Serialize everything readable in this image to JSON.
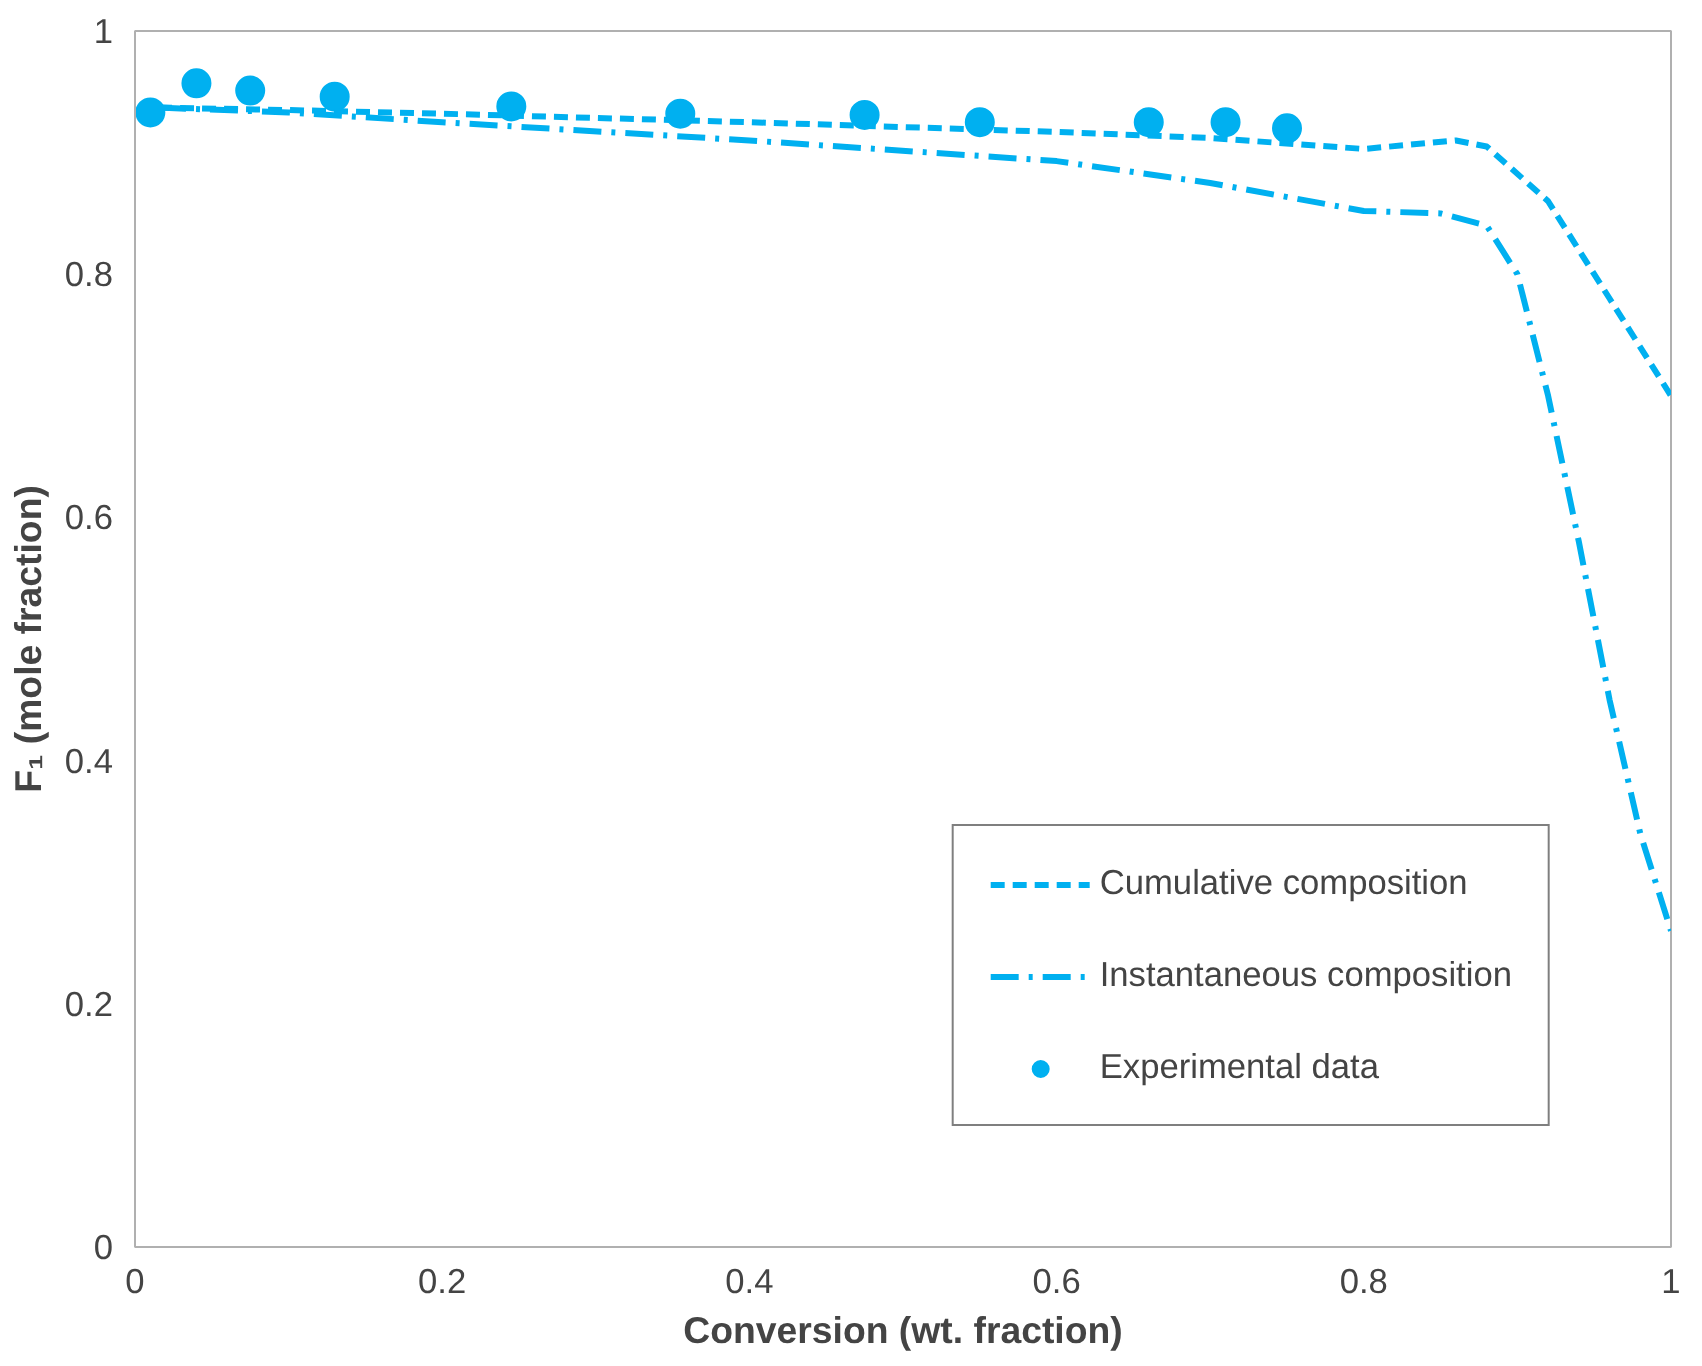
{
  "chart_data": {
    "type": "line",
    "xlabel": "Conversion (wt. fraction)",
    "ylabel": "F₁ (mole fraction)",
    "xlim": [
      0,
      1
    ],
    "ylim": [
      0,
      1
    ],
    "xticks": [
      0,
      0.2,
      0.4,
      0.6,
      0.8,
      1
    ],
    "yticks": [
      0,
      0.2,
      0.4,
      0.6,
      0.8,
      1
    ],
    "grid": false,
    "legend": "bottom right",
    "series": [
      {
        "name": "Cumulative composition",
        "line_style": "dashed",
        "color": "#00b0f0",
        "x": [
          0.015,
          0.1,
          0.2,
          0.4,
          0.6,
          0.7,
          0.8,
          0.86,
          0.88,
          0.92,
          0.96,
          1.0
        ],
        "values": [
          0.937,
          0.935,
          0.932,
          0.925,
          0.917,
          0.912,
          0.903,
          0.91,
          0.905,
          0.86,
          0.78,
          0.7
        ]
      },
      {
        "name": "Instantaneous composition",
        "line_style": "dashdot",
        "color": "#00b0f0",
        "x": [
          0.015,
          0.1,
          0.2,
          0.4,
          0.6,
          0.7,
          0.8,
          0.85,
          0.88,
          0.9,
          0.92,
          0.94,
          0.96,
          0.98,
          1.0
        ],
        "values": [
          0.937,
          0.933,
          0.925,
          0.91,
          0.893,
          0.875,
          0.852,
          0.85,
          0.84,
          0.8,
          0.7,
          0.58,
          0.45,
          0.34,
          0.26
        ]
      },
      {
        "name": "Experimental data",
        "type": "scatter",
        "marker": "circle",
        "color": "#00b0f0",
        "x": [
          0.01,
          0.04,
          0.075,
          0.13,
          0.245,
          0.355,
          0.475,
          0.55,
          0.66,
          0.71,
          0.75
        ],
        "values": [
          0.933,
          0.957,
          0.951,
          0.946,
          0.938,
          0.932,
          0.931,
          0.925,
          0.925,
          0.925,
          0.92
        ]
      }
    ]
  }
}
